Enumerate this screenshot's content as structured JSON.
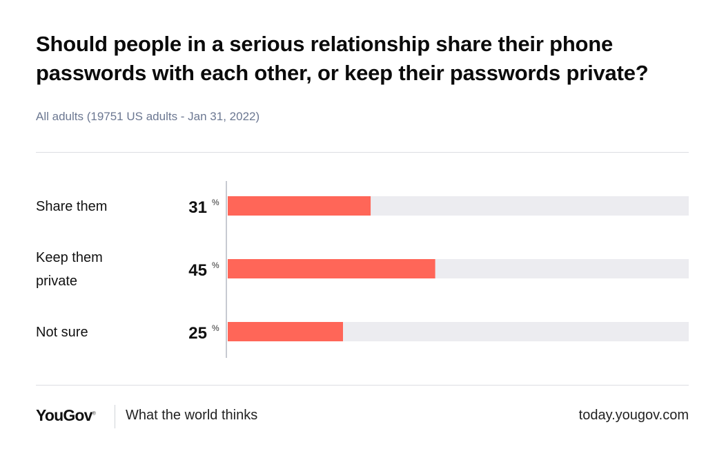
{
  "header": {
    "title": "Should people in a serious relationship share their phone passwords with each other, or keep their passwords private?",
    "subtitle": "All adults (19751 US adults - Jan 31, 2022)"
  },
  "colors": {
    "bar": "#ff6658",
    "track": "#ececf0",
    "axis": "#c7cad1",
    "label": "#111111"
  },
  "chart_data": {
    "type": "bar",
    "orientation": "horizontal",
    "title": "Should people in a serious relationship share their phone passwords with each other, or keep their passwords private?",
    "categories": [
      [
        "Share them"
      ],
      [
        "Keep them",
        "private"
      ],
      [
        "Not sure"
      ]
    ],
    "values": [
      31,
      45,
      25
    ],
    "value_suffix": "%",
    "xlim": [
      0,
      100
    ],
    "xlabel": "",
    "ylabel": ""
  },
  "footer": {
    "brand": "YouGov",
    "brand_mark": "®",
    "tagline": "What the world thinks",
    "url": "today.yougov.com"
  }
}
